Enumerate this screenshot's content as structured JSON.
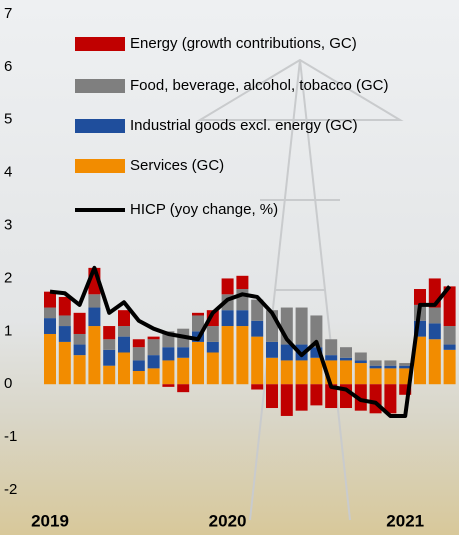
{
  "chart_data": {
    "type": "bar",
    "stacked": true,
    "categories": [
      "2019",
      null,
      null,
      null,
      null,
      null,
      null,
      null,
      null,
      null,
      null,
      null,
      "2020",
      null,
      null,
      null,
      null,
      null,
      null,
      null,
      null,
      null,
      null,
      null,
      "2021",
      null,
      null,
      null
    ],
    "ylim": [
      -2,
      7
    ],
    "yticks": [
      -2,
      -1,
      0,
      1,
      2,
      3,
      4,
      5,
      6,
      7
    ],
    "series": [
      {
        "name": "Energy (growth contributions, GC)",
        "color": "#c00000",
        "values": [
          0.3,
          0.35,
          0.4,
          0.5,
          0.25,
          0.3,
          0.15,
          0.05,
          -0.05,
          -0.15,
          0.05,
          0.3,
          0.3,
          0.25,
          -0.1,
          -0.45,
          -0.6,
          -0.5,
          -0.4,
          -0.45,
          -0.45,
          -0.5,
          -0.55,
          -0.55,
          -0.2,
          0.3,
          0.55,
          0.75
        ]
      },
      {
        "name": "Food, beverage, alcohol, tobacco (GC)",
        "color": "#7f7f7f",
        "values": [
          0.2,
          0.2,
          0.2,
          0.25,
          0.2,
          0.2,
          0.25,
          0.3,
          0.3,
          0.35,
          0.3,
          0.3,
          0.3,
          0.4,
          0.4,
          0.6,
          0.7,
          0.7,
          0.6,
          0.3,
          0.2,
          0.15,
          0.1,
          0.1,
          0.05,
          0.3,
          0.3,
          0.35
        ]
      },
      {
        "name": "Industrial goods excl. energy (GC)",
        "color": "#1f4e9c",
        "values": [
          0.3,
          0.3,
          0.2,
          0.35,
          0.3,
          0.3,
          0.2,
          0.25,
          0.25,
          0.2,
          0.2,
          0.2,
          0.3,
          0.3,
          0.3,
          0.3,
          0.3,
          0.3,
          0.2,
          0.1,
          0.05,
          0.05,
          0.05,
          0.05,
          0.05,
          0.3,
          0.3,
          0.1
        ]
      },
      {
        "name": "Services (GC)",
        "color": "#f28c00",
        "values": [
          0.95,
          0.8,
          0.55,
          1.1,
          0.35,
          0.6,
          0.25,
          0.3,
          0.45,
          0.5,
          0.8,
          0.6,
          1.1,
          1.1,
          0.9,
          0.5,
          0.45,
          0.45,
          0.5,
          0.45,
          0.45,
          0.4,
          0.3,
          0.3,
          0.3,
          0.9,
          0.85,
          0.65
        ]
      },
      {
        "name": "HICP (yoy change, %)",
        "type": "line",
        "color": "#000000",
        "values": [
          1.75,
          1.72,
          1.5,
          2.2,
          1.35,
          1.55,
          1.2,
          1.05,
          0.95,
          0.9,
          0.85,
          1.35,
          1.6,
          1.7,
          1.65,
          1.35,
          0.85,
          0.55,
          0.8,
          -0.05,
          -0.1,
          -0.3,
          -0.35,
          -0.6,
          -0.6,
          1.5,
          1.5,
          1.85
        ]
      }
    ]
  }
}
